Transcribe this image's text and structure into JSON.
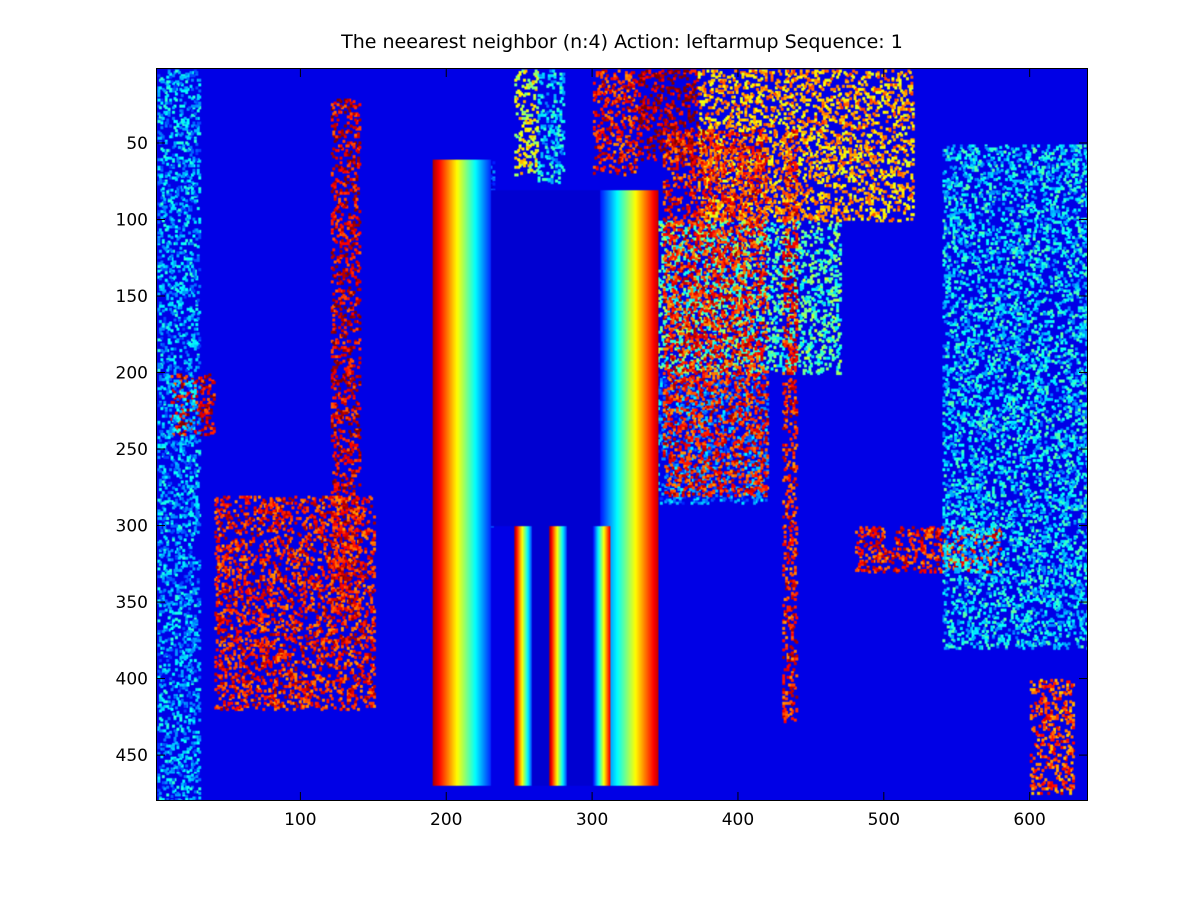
{
  "chart_data": {
    "type": "heatmap",
    "title": "The neearest neighbor (n:4) Action: leftarmup Sequence: 1",
    "xlabel": "",
    "ylabel": "",
    "xlim": [
      1,
      640
    ],
    "ylim": [
      480,
      1
    ],
    "y_reversed": true,
    "grid": false,
    "colormap": "jet",
    "image_size": {
      "cols": 640,
      "rows": 480
    },
    "x_ticks": [
      100,
      200,
      300,
      400,
      500,
      600
    ],
    "y_ticks": [
      50,
      100,
      150,
      200,
      250,
      300,
      350,
      400,
      450
    ],
    "x_tick_labels": [
      "100",
      "200",
      "300",
      "400",
      "500",
      "600"
    ],
    "y_tick_labels": [
      "50",
      "100",
      "150",
      "200",
      "250",
      "300",
      "350",
      "400",
      "450"
    ],
    "background_level": 0.1,
    "regions": [
      {
        "type": "band",
        "x": [
          246,
          262
        ],
        "y": [
          1,
          70
        ],
        "level": 0.6
      },
      {
        "type": "band",
        "x": [
          262,
          280
        ],
        "y": [
          1,
          75
        ],
        "level": 0.35
      },
      {
        "type": "band",
        "x": [
          300,
          330
        ],
        "y": [
          1,
          70
        ],
        "level": 0.85
      },
      {
        "type": "band",
        "x": [
          330,
          372
        ],
        "y": [
          1,
          60
        ],
        "level": 0.95
      },
      {
        "type": "band",
        "x": [
          372,
          520
        ],
        "y": [
          1,
          100
        ],
        "level": 0.7
      },
      {
        "type": "band",
        "x": [
          330,
          470
        ],
        "y": [
          100,
          200
        ],
        "level": 0.45
      },
      {
        "type": "band",
        "x": [
          310,
          420
        ],
        "y": [
          200,
          285
        ],
        "level": 0.25
      },
      {
        "type": "band",
        "x": [
          210,
          232
        ],
        "y": [
          60,
          300
        ],
        "level": 0.15
      },
      {
        "type": "band",
        "x": [
          120,
          140
        ],
        "y": [
          20,
          360
        ],
        "level": 0.9
      },
      {
        "type": "band",
        "x": [
          348,
          420
        ],
        "y": [
          40,
          280
        ],
        "level": 0.85
      },
      {
        "type": "band",
        "x": [
          10,
          40
        ],
        "y": [
          200,
          240
        ],
        "level": 0.9
      },
      {
        "type": "band",
        "x": [
          40,
          150
        ],
        "y": [
          280,
          420
        ],
        "level": 0.85
      },
      {
        "type": "band",
        "x": [
          430,
          440
        ],
        "y": [
          40,
          430
        ],
        "level": 0.85
      },
      {
        "type": "band",
        "x": [
          480,
          580
        ],
        "y": [
          300,
          330
        ],
        "level": 0.85
      },
      {
        "type": "band",
        "x": [
          540,
          640
        ],
        "y": [
          50,
          380
        ],
        "level": 0.35
      },
      {
        "type": "band",
        "x": [
          600,
          630
        ],
        "y": [
          400,
          475
        ],
        "level": 0.8
      },
      {
        "type": "band",
        "x": [
          1,
          30
        ],
        "y": [
          1,
          480
        ],
        "level": 0.3
      }
    ],
    "body": {
      "torso": {
        "x": [
          230,
          305
        ],
        "y": [
          80,
          300
        ]
      },
      "legs": [
        {
          "x": [
            258,
            270
          ],
          "y": [
            300,
            470
          ]
        },
        {
          "x": [
            282,
            300
          ],
          "y": [
            300,
            470
          ]
        }
      ],
      "level": 0.08
    }
  }
}
